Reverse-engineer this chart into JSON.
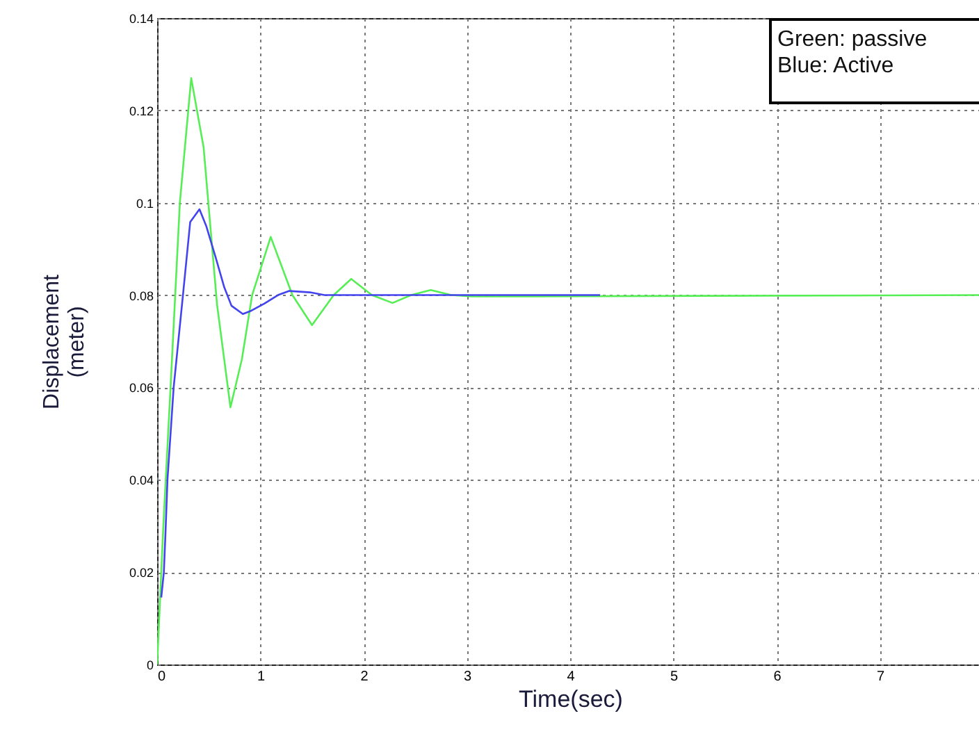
{
  "chart_data": {
    "type": "line",
    "xlabel": "Time(sec)",
    "ylabel": "Displacement\n(meter)",
    "annotations": [
      "Green: passive",
      "Blue: Active"
    ],
    "series": [
      {
        "color": "#55ee55",
        "x": [
          0,
          0.06,
          0.13,
          0.22,
          0.33,
          0.45,
          0.58,
          0.71,
          0.82,
          0.92,
          1.1,
          1.31,
          1.5,
          1.71,
          1.88,
          2.08,
          2.28,
          2.46,
          2.65,
          2.85,
          3.05,
          8
        ],
        "values": [
          0,
          0.03,
          0.06,
          0.1,
          0.127,
          0.112,
          0.078,
          0.0557,
          0.066,
          0.08,
          0.0926,
          0.08,
          0.0735,
          0.08,
          0.0835,
          0.08,
          0.0783,
          0.08,
          0.0811,
          0.08,
          0.0797,
          0.08
        ]
      },
      {
        "color": "#4444ee",
        "x": [
          0.04,
          0.065,
          0.08,
          0.1,
          0.16,
          0.25,
          0.32,
          0.41,
          0.475,
          0.565,
          0.65,
          0.72,
          0.83,
          0.9,
          1.04,
          1.17,
          1.28,
          1.48,
          1.62,
          4.29
        ],
        "values": [
          0.0145,
          0.02,
          0.028,
          0.04,
          0.06,
          0.08,
          0.0958,
          0.0986,
          0.095,
          0.0883,
          0.0817,
          0.0777,
          0.0759,
          0.0765,
          0.0782,
          0.08,
          0.0809,
          0.0806,
          0.08,
          0.08
        ]
      }
    ],
    "xlim": [
      0,
      8
    ],
    "xticks": [
      0,
      1,
      2,
      3,
      4,
      5,
      6,
      7
    ],
    "ylim": [
      0,
      0.14
    ],
    "yticks": [
      0,
      0.02,
      0.04,
      0.06,
      0.08,
      0.1,
      0.12,
      0.14
    ],
    "grid": true,
    "line_style": "solid",
    "marker": "none"
  }
}
